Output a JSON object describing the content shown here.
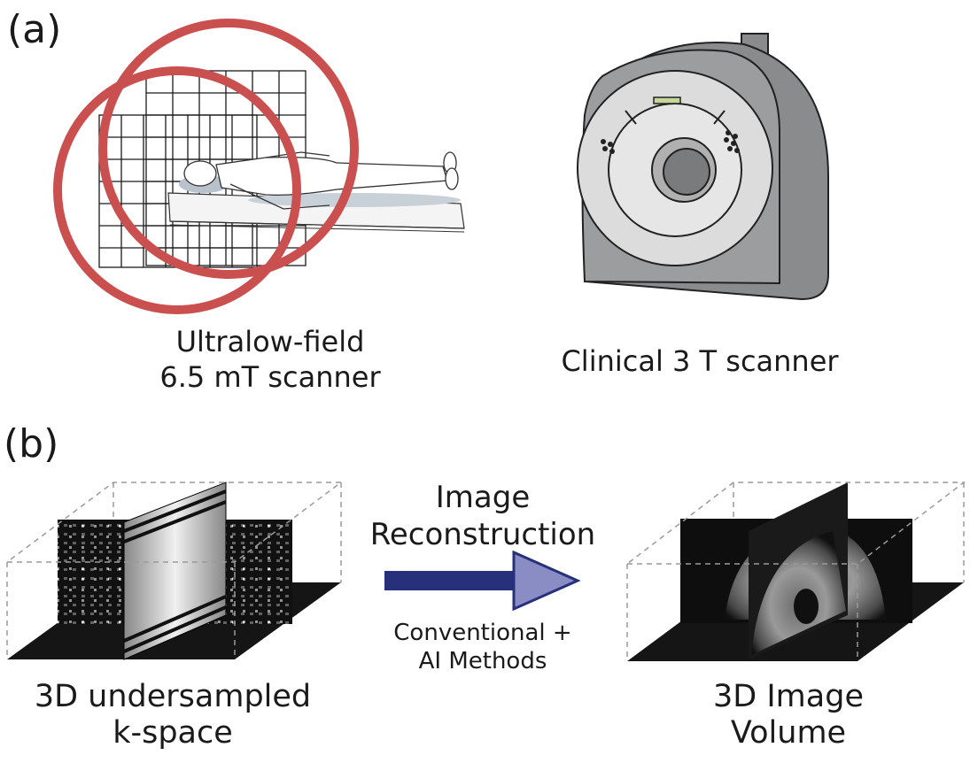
{
  "panel_a": {
    "label": "(a)",
    "left_caption": [
      "Ultralow-field",
      "6.5 mT scanner"
    ],
    "right_caption": "Clinical 3 T scanner"
  },
  "panel_b": {
    "label": "(b)",
    "arrow_title": [
      "Image",
      "Reconstruction"
    ],
    "arrow_subtitle": [
      "Conventional +",
      "AI Methods"
    ],
    "left_caption": [
      "3D undersampled",
      "k-space"
    ],
    "right_caption": [
      "3D Image",
      "Volume"
    ]
  },
  "colors": {
    "coil_red": "#c9504f",
    "grid": "#1a1a1a",
    "scanner_body": "#8a8b8c",
    "scanner_face": "#dcdcdc",
    "arrow_fill": "#27307a",
    "arrow_tip": "#8a8cc4",
    "indicator": "#c6d79a"
  },
  "icons": [
    "ultralow-field-scanner-illustration",
    "mri-scanner-illustration",
    "kspace-volume-icon",
    "image-volume-icon",
    "reconstruction-arrow-icon"
  ]
}
